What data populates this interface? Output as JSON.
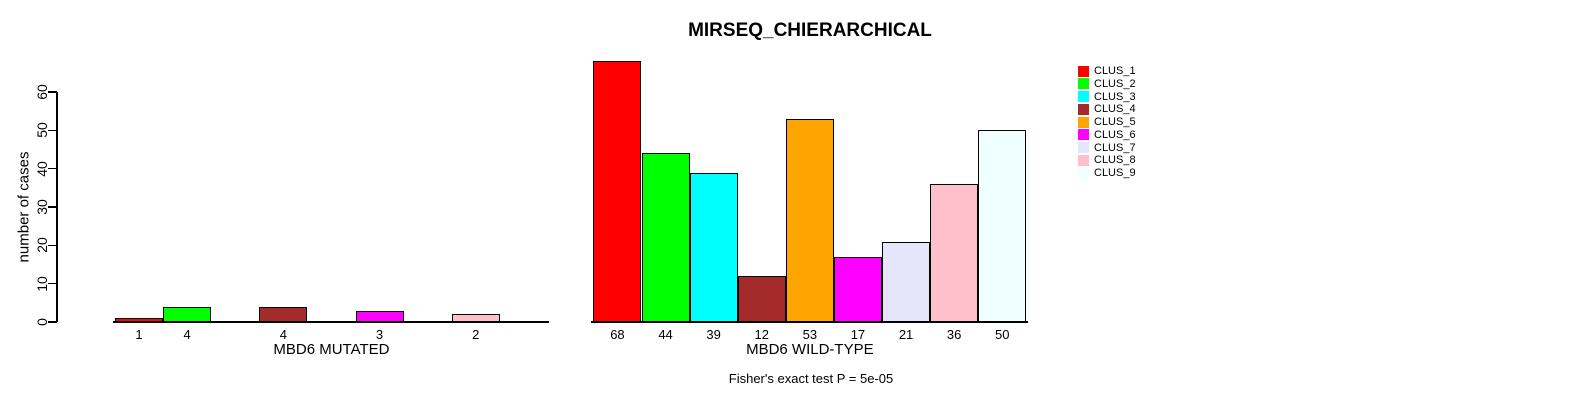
{
  "title": "MIRSEQ_CHIERARCHICAL",
  "chart_data": {
    "type": "bar",
    "title": "MIRSEQ_CHIERARCHICAL",
    "ylabel": "number of cases",
    "xlabel": "",
    "ylim": [
      0,
      60
    ],
    "yticks": [
      0,
      10,
      20,
      30,
      40,
      50,
      60
    ],
    "grid": false,
    "legend_position": "right",
    "series_names": [
      "CLUS_1",
      "CLUS_2",
      "CLUS_3",
      "CLUS_4",
      "CLUS_5",
      "CLUS_6",
      "CLUS_7",
      "CLUS_8",
      "CLUS_9"
    ],
    "series_colors": [
      "#FF0000",
      "#00FF00",
      "#00FFFF",
      "#A52A2A",
      "#FFA500",
      "#FF00FF",
      "#E6E6FA",
      "#FFC0CB",
      "#F0FFFF"
    ],
    "groups": [
      {
        "label": "MBD6 MUTATED",
        "values": [
          1,
          4,
          0,
          4,
          0,
          3,
          0,
          2,
          0
        ],
        "bar_labels": [
          "1",
          "4",
          "",
          "4",
          "",
          "3",
          "",
          "2",
          ""
        ]
      },
      {
        "label": "MBD6 WILD-TYPE",
        "values": [
          68,
          44,
          39,
          12,
          53,
          17,
          21,
          36,
          50
        ],
        "bar_labels": [
          "68",
          "44",
          "39",
          "12",
          "53",
          "17",
          "21",
          "36",
          "50"
        ]
      }
    ],
    "footnote": "Fisher's exact test P = 5e-05"
  },
  "legend": {
    "items": [
      {
        "label": "CLUS_1",
        "color": "#FF0000"
      },
      {
        "label": "CLUS_2",
        "color": "#00FF00"
      },
      {
        "label": "CLUS_3",
        "color": "#00FFFF"
      },
      {
        "label": "CLUS_4",
        "color": "#A52A2A"
      },
      {
        "label": "CLUS_5",
        "color": "#FFA500"
      },
      {
        "label": "CLUS_6",
        "color": "#FF00FF"
      },
      {
        "label": "CLUS_7",
        "color": "#E6E6FA"
      },
      {
        "label": "CLUS_8",
        "color": "#FFC0CB"
      },
      {
        "label": "CLUS_9",
        "color": "#F0FFFF"
      }
    ]
  },
  "colors": {
    "background": "#FFFFFF",
    "axis": "#000000",
    "text": "#000000"
  }
}
